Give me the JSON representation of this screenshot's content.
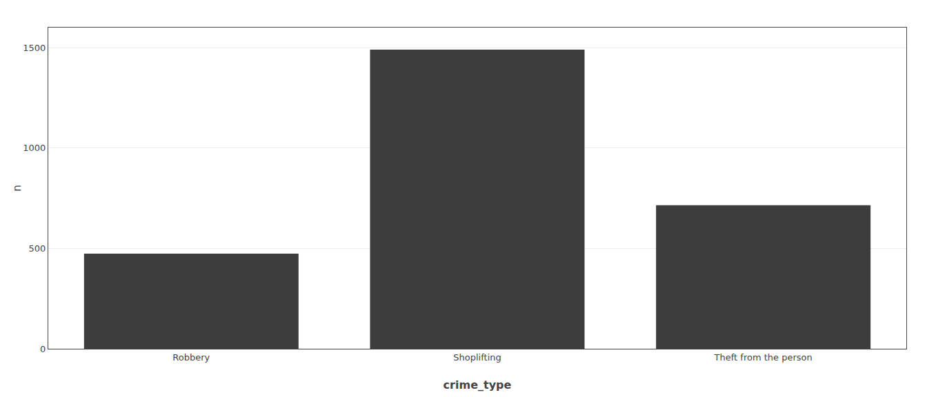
{
  "chart_data": {
    "type": "bar",
    "categories": [
      "Robbery",
      "Shoplifting",
      "Theft from the person"
    ],
    "values": [
      474,
      1490,
      715
    ],
    "color": "#3d3d3d",
    "xlabel": "crime_type",
    "ylabel": "n",
    "ylim": [
      0,
      1600
    ],
    "yticks": [
      0,
      500,
      1000,
      1500
    ],
    "grid": true
  }
}
